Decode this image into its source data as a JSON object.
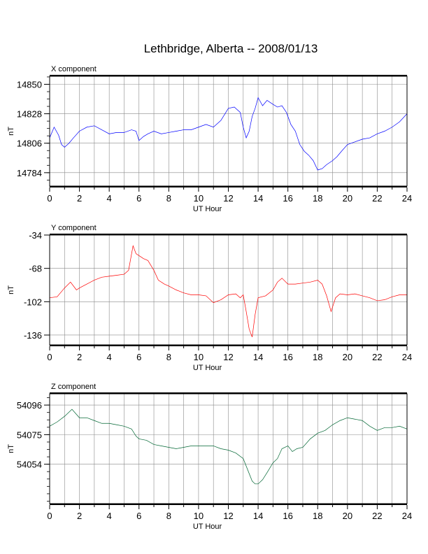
{
  "title": "Lethbridge, Alberta -- 2008/01/13",
  "chart_data": [
    {
      "type": "line",
      "panel_label": "X component",
      "xlabel": "UT Hour",
      "ylabel": "nT",
      "xlim": [
        0,
        24
      ],
      "ylim": [
        14774,
        14856
      ],
      "x_ticks": [
        0,
        2,
        4,
        6,
        8,
        10,
        12,
        14,
        16,
        18,
        20,
        22,
        24
      ],
      "y_ticks": [
        14784,
        14806,
        14828,
        14850
      ],
      "color": "#0000ff",
      "grid": true,
      "series": [
        {
          "x": [
            0,
            0.3,
            0.6,
            0.8,
            1.0,
            1.3,
            1.6,
            2.0,
            2.5,
            3.0,
            3.5,
            4.0,
            4.5,
            5.0,
            5.5,
            5.8,
            6.0,
            6.3,
            6.6,
            7.0,
            7.5,
            8.0,
            8.5,
            9.0,
            9.5,
            10.0,
            10.5,
            11.0,
            11.5,
            12.0,
            12.4,
            12.8,
            13.0,
            13.2,
            13.4,
            13.6,
            13.8,
            14.0,
            14.3,
            14.6,
            15.0,
            15.3,
            15.6,
            15.9,
            16.2,
            16.5,
            16.8,
            17.1,
            17.4,
            17.7,
            18.0,
            18.3,
            18.6,
            19.0,
            19.3,
            19.6,
            20.0,
            20.5,
            21.0,
            21.5,
            22.0,
            22.5,
            23.0,
            23.5,
            24.0
          ],
          "values": [
            14810,
            14818,
            14812,
            14805,
            14803,
            14806,
            14810,
            14815,
            14818,
            14819,
            14816,
            14813,
            14814,
            14814,
            14816,
            14815,
            14808,
            14811,
            14813,
            14815,
            14813,
            14814,
            14815,
            14816,
            14816,
            14818,
            14820,
            14818,
            14823,
            14832,
            14833,
            14829,
            14818,
            14810,
            14815,
            14826,
            14832,
            14840,
            14834,
            14838,
            14835,
            14833,
            14834,
            14829,
            14820,
            14815,
            14805,
            14800,
            14797,
            14793,
            14786,
            14787,
            14790,
            14793,
            14796,
            14800,
            14805,
            14807,
            14809,
            14810,
            14813,
            14815,
            14818,
            14822,
            14828
          ]
        }
      ]
    },
    {
      "type": "line",
      "panel_label": "Y component",
      "xlabel": "UT Hour",
      "ylabel": "nT",
      "xlim": [
        0,
        24
      ],
      "ylim": [
        -146,
        -34
      ],
      "x_ticks": [
        0,
        2,
        4,
        6,
        8,
        10,
        12,
        14,
        16,
        18,
        20,
        22,
        24
      ],
      "y_ticks": [
        -34,
        -68,
        -102,
        -136
      ],
      "color": "#ff0000",
      "grid": true,
      "series": [
        {
          "x": [
            0,
            0.5,
            1.0,
            1.4,
            1.8,
            2.0,
            2.5,
            3.0,
            3.5,
            4.0,
            4.5,
            5.0,
            5.3,
            5.6,
            5.8,
            6.0,
            6.3,
            6.6,
            7.0,
            7.3,
            7.7,
            8.0,
            8.5,
            9.0,
            9.5,
            10.0,
            10.5,
            11.0,
            11.5,
            12.0,
            12.5,
            12.8,
            13.0,
            13.2,
            13.4,
            13.6,
            13.8,
            14.0,
            14.5,
            15.0,
            15.3,
            15.6,
            16.0,
            16.5,
            17.0,
            17.5,
            18.0,
            18.3,
            18.6,
            18.9,
            19.2,
            19.5,
            20.0,
            20.5,
            21.0,
            21.5,
            22.0,
            22.5,
            23.0,
            23.5,
            24.0
          ],
          "values": [
            -98,
            -97,
            -88,
            -82,
            -90,
            -88,
            -84,
            -80,
            -77,
            -76,
            -75,
            -74,
            -70,
            -45,
            -53,
            -55,
            -58,
            -60,
            -70,
            -80,
            -84,
            -86,
            -90,
            -93,
            -95,
            -95,
            -96,
            -103,
            -100,
            -95,
            -94,
            -98,
            -95,
            -112,
            -130,
            -138,
            -115,
            -98,
            -96,
            -90,
            -82,
            -78,
            -84,
            -84,
            -83,
            -82,
            -80,
            -84,
            -96,
            -112,
            -98,
            -94,
            -95,
            -94,
            -96,
            -98,
            -101,
            -100,
            -97,
            -95,
            -95
          ]
        }
      ]
    },
    {
      "type": "line",
      "panel_label": "Z component",
      "xlabel": "UT Hour",
      "ylabel": "nT",
      "xlim": [
        0,
        24
      ],
      "ylim": [
        54026,
        54104
      ],
      "x_ticks": [
        0,
        2,
        4,
        6,
        8,
        10,
        12,
        14,
        16,
        18,
        20,
        22,
        24
      ],
      "y_ticks": [
        54054,
        54075,
        54096
      ],
      "color": "#006633",
      "grid": true,
      "series": [
        {
          "x": [
            0,
            0.5,
            1.0,
            1.5,
            2.0,
            2.5,
            3.0,
            3.5,
            4.0,
            4.5,
            5.0,
            5.5,
            5.8,
            6.0,
            6.5,
            7.0,
            7.5,
            8.0,
            8.5,
            9.0,
            9.5,
            10.0,
            10.5,
            11.0,
            11.5,
            12.0,
            12.5,
            13.0,
            13.3,
            13.6,
            13.8,
            14.0,
            14.3,
            14.6,
            15.0,
            15.3,
            15.6,
            16.0,
            16.3,
            16.6,
            17.0,
            17.5,
            18.0,
            18.5,
            19.0,
            19.5,
            20.0,
            20.5,
            21.0,
            21.5,
            22.0,
            22.5,
            23.0,
            23.5,
            24.0
          ],
          "values": [
            54081,
            54084,
            54088,
            54093,
            54087,
            54087,
            54085,
            54083,
            54083,
            54082,
            54081,
            54079,
            54074,
            54072,
            54071,
            54068,
            54067,
            54066,
            54065,
            54066,
            54067,
            54067,
            54067,
            54067,
            54065,
            54064,
            54062,
            54058,
            54050,
            54042,
            54040,
            54040,
            54043,
            54048,
            54055,
            54058,
            54065,
            54067,
            54063,
            54065,
            54066,
            54072,
            54076,
            54078,
            54082,
            54085,
            54087,
            54086,
            54085,
            54081,
            54078,
            54080,
            54080,
            54081,
            54079
          ]
        }
      ]
    }
  ]
}
